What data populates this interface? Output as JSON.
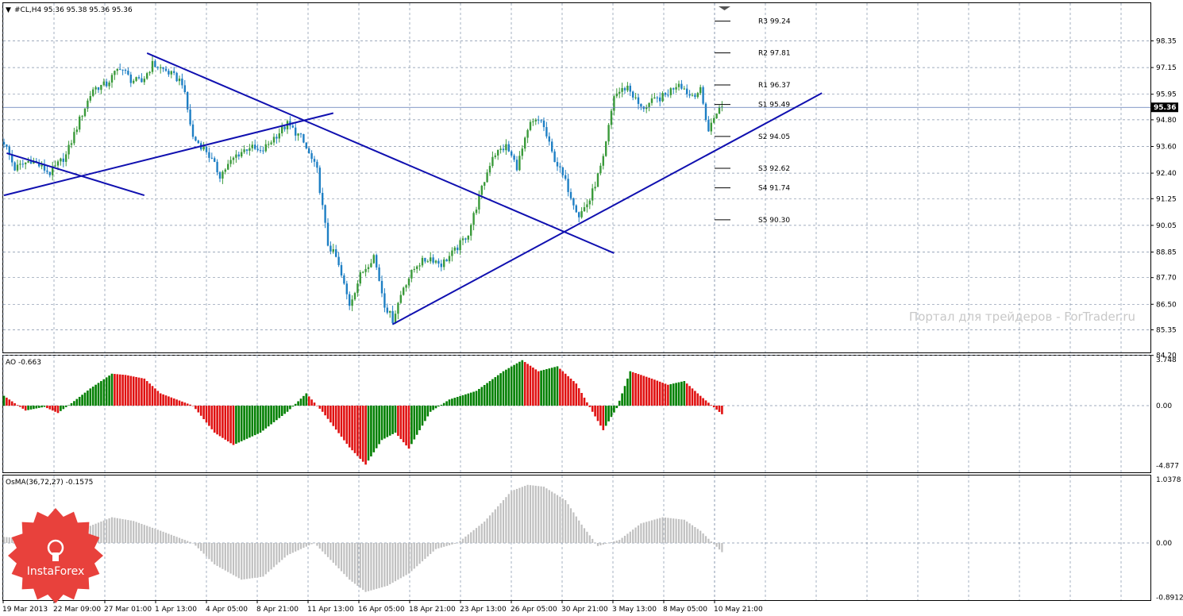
{
  "main": {
    "title": "#CL,H4  95.36 95.38 95.36 95.36",
    "menu_glyph": "▼",
    "price_badge": "95.36",
    "price_line": 95.36,
    "price_ticks": [
      "98.35",
      "97.15",
      "95.95",
      "94.80",
      "93.60",
      "92.40",
      "91.25",
      "90.05",
      "88.85",
      "87.70",
      "86.50",
      "85.35",
      "84.20"
    ],
    "pivots": [
      {
        "label": "R3 99.24",
        "value": 99.24
      },
      {
        "label": "R2 97.81",
        "value": 97.81
      },
      {
        "label": "R1 96.37",
        "value": 96.37
      },
      {
        "label": "S1 95.49",
        "value": 95.49
      },
      {
        "label": "S2 94.05",
        "value": 94.05
      },
      {
        "label": "S3 92.62",
        "value": 92.62
      },
      {
        "label": "S4 91.74",
        "value": 91.74
      },
      {
        "label": "S5 90.30",
        "value": 90.3
      }
    ],
    "watermark": "Портал для трейдеров - ForTrader.ru"
  },
  "ao": {
    "title": "AO -0.663",
    "ticks": [
      "3.748",
      "0.00",
      "-4.877"
    ]
  },
  "osma": {
    "title": "OsMA(36,72,27) -0.1575",
    "ticks": [
      "1.0378",
      "0.00",
      "-0.8912"
    ]
  },
  "time_axis": [
    "19 Mar 2013",
    "22 Mar 09:00",
    "27 Mar 01:00",
    "1 Apr 13:00",
    "4 Apr 05:00",
    "8 Apr 21:00",
    "11 Apr 13:00",
    "16 Apr 05:00",
    "18 Apr 21:00",
    "23 Apr 13:00",
    "26 Apr 05:00",
    "30 Apr 21:00",
    "3 May 13:00",
    "8 May 05:00",
    "10 May 21:00"
  ],
  "logo": {
    "text": "InstaForex"
  },
  "colors": {
    "up_candle": "#3a9a3a",
    "down_candle": "#1e7fc4",
    "trendline": "#1010b0",
    "ao_up": "#007f00",
    "ao_down": "#e01010",
    "osma": "#c0c0c0",
    "grid": "#8090a8",
    "logo": "#e8413c"
  },
  "chart_data": [
    {
      "type": "candlestick",
      "symbol": "#CL",
      "timeframe": "H4",
      "ylim": [
        84.2,
        99.2
      ],
      "x_labels": [
        "19 Mar 2013",
        "22 Mar 09:00",
        "27 Mar 01:00",
        "1 Apr 13:00",
        "4 Apr 05:00",
        "8 Apr 21:00",
        "11 Apr 13:00",
        "16 Apr 05:00",
        "18 Apr 21:00",
        "23 Apr 13:00",
        "26 Apr 05:00",
        "30 Apr 21:00",
        "3 May 13:00",
        "8 May 05:00",
        "10 May 21:00"
      ],
      "close_path": [
        [
          0,
          93.8
        ],
        [
          4,
          92.6
        ],
        [
          10,
          93.0
        ],
        [
          17,
          92.4
        ],
        [
          23,
          93.2
        ],
        [
          28,
          94.8
        ],
        [
          33,
          96.2
        ],
        [
          38,
          96.4
        ],
        [
          43,
          97.2
        ],
        [
          47,
          96.6
        ],
        [
          51,
          96.5
        ],
        [
          55,
          97.3
        ],
        [
          60,
          97.0
        ],
        [
          66,
          96.5
        ],
        [
          70,
          94.0
        ],
        [
          75,
          93.4
        ],
        [
          80,
          92.3
        ],
        [
          86,
          93.2
        ],
        [
          91,
          93.6
        ],
        [
          95,
          93.3
        ],
        [
          100,
          94.0
        ],
        [
          105,
          94.6
        ],
        [
          110,
          94.0
        ],
        [
          116,
          92.5
        ],
        [
          120,
          89.2
        ],
        [
          123,
          88.6
        ],
        [
          128,
          86.5
        ],
        [
          132,
          87.8
        ],
        [
          137,
          88.7
        ],
        [
          141,
          86.5
        ],
        [
          144,
          85.8
        ],
        [
          148,
          87.3
        ],
        [
          153,
          88.3
        ],
        [
          158,
          88.6
        ],
        [
          162,
          88.3
        ],
        [
          167,
          88.9
        ],
        [
          172,
          89.7
        ],
        [
          176,
          91.3
        ],
        [
          181,
          93.2
        ],
        [
          186,
          93.6
        ],
        [
          190,
          92.7
        ],
        [
          195,
          94.6
        ],
        [
          199,
          94.8
        ],
        [
          203,
          93.3
        ],
        [
          208,
          92.0
        ],
        [
          213,
          90.5
        ],
        [
          217,
          91.2
        ],
        [
          222,
          93.0
        ],
        [
          226,
          95.9
        ],
        [
          231,
          96.3
        ],
        [
          236,
          95.3
        ],
        [
          240,
          95.6
        ],
        [
          245,
          95.9
        ],
        [
          250,
          96.5
        ],
        [
          254,
          95.9
        ],
        [
          258,
          96.1
        ],
        [
          261,
          94.3
        ],
        [
          264,
          95.2
        ],
        [
          266,
          95.36
        ]
      ],
      "pivots": {
        "R3": 99.24,
        "R2": 97.81,
        "R1": 96.37,
        "S1": 95.49,
        "S2": 94.05,
        "S3": 92.62,
        "S4": 91.74,
        "S5": 90.3
      },
      "trendlines": [
        {
          "from": [
            1,
            93.3
          ],
          "to": [
            52,
            91.4
          ]
        },
        {
          "from": [
            0,
            91.4
          ],
          "to": [
            122,
            95.1
          ]
        },
        {
          "from": [
            53,
            97.8
          ],
          "to": [
            226,
            88.8
          ]
        },
        {
          "from": [
            144,
            85.6
          ],
          "to": [
            303,
            96.0
          ]
        }
      ],
      "current_price": 95.36
    },
    {
      "type": "histogram",
      "name": "AO",
      "current": -0.663,
      "ylim": [
        -4.877,
        3.748
      ],
      "up_color": "#007f00",
      "down_color": "#e01010",
      "path": [
        [
          0,
          0.8
        ],
        [
          8,
          -0.4
        ],
        [
          15,
          -0.1
        ],
        [
          20,
          -0.6
        ],
        [
          25,
          0.2
        ],
        [
          32,
          1.4
        ],
        [
          40,
          2.6
        ],
        [
          45,
          2.5
        ],
        [
          52,
          2.2
        ],
        [
          58,
          1.0
        ],
        [
          70,
          0.0
        ],
        [
          78,
          -2.2
        ],
        [
          85,
          -3.2
        ],
        [
          95,
          -2.2
        ],
        [
          105,
          -0.5
        ],
        [
          112,
          1.0
        ],
        [
          118,
          -0.5
        ],
        [
          128,
          -3.4
        ],
        [
          134,
          -4.8
        ],
        [
          140,
          -2.8
        ],
        [
          145,
          -2.2
        ],
        [
          150,
          -3.5
        ],
        [
          158,
          -0.5
        ],
        [
          165,
          0.5
        ],
        [
          175,
          1.2
        ],
        [
          185,
          2.8
        ],
        [
          192,
          3.7
        ],
        [
          198,
          2.8
        ],
        [
          205,
          3.2
        ],
        [
          212,
          1.8
        ],
        [
          218,
          -0.5
        ],
        [
          222,
          -2.0
        ],
        [
          227,
          -0.2
        ],
        [
          232,
          2.8
        ],
        [
          240,
          2.2
        ],
        [
          246,
          1.7
        ],
        [
          252,
          2.0
        ],
        [
          258,
          0.8
        ],
        [
          266,
          -0.7
        ]
      ]
    },
    {
      "type": "histogram",
      "name": "OsMA(36,72,27)",
      "current": -0.1575,
      "ylim": [
        -0.8912,
        1.0378
      ],
      "color": "#c0c0c0",
      "path": [
        [
          0,
          0.1
        ],
        [
          12,
          0.05
        ],
        [
          22,
          0.12
        ],
        [
          32,
          0.28
        ],
        [
          40,
          0.42
        ],
        [
          48,
          0.36
        ],
        [
          58,
          0.2
        ],
        [
          70,
          0.0
        ],
        [
          78,
          -0.35
        ],
        [
          88,
          -0.6
        ],
        [
          96,
          -0.55
        ],
        [
          105,
          -0.2
        ],
        [
          115,
          0.0
        ],
        [
          128,
          -0.6
        ],
        [
          134,
          -0.8
        ],
        [
          142,
          -0.7
        ],
        [
          150,
          -0.5
        ],
        [
          160,
          -0.1
        ],
        [
          168,
          0.0
        ],
        [
          178,
          0.35
        ],
        [
          188,
          0.85
        ],
        [
          194,
          0.95
        ],
        [
          200,
          0.92
        ],
        [
          208,
          0.7
        ],
        [
          214,
          0.3
        ],
        [
          220,
          -0.05
        ],
        [
          228,
          0.05
        ],
        [
          236,
          0.32
        ],
        [
          244,
          0.42
        ],
        [
          252,
          0.38
        ],
        [
          258,
          0.2
        ],
        [
          266,
          -0.15
        ]
      ]
    }
  ]
}
